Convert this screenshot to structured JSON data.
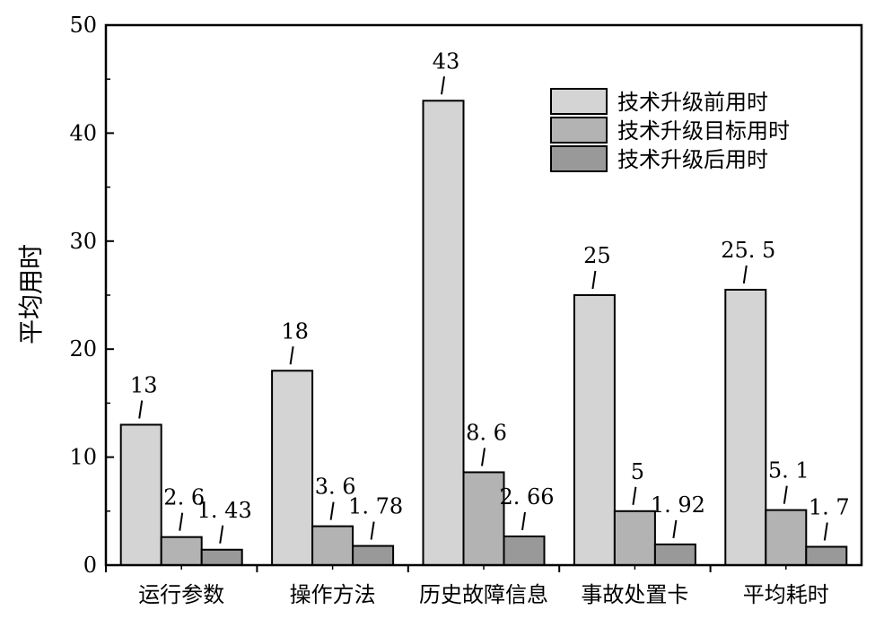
{
  "chart_data": {
    "type": "bar",
    "ylabel": "平均用时",
    "xlabel": "",
    "ylim": [
      0,
      50
    ],
    "yticks": [
      0,
      10,
      20,
      30,
      40,
      50
    ],
    "categories": [
      "运行参数",
      "操作方法",
      "历史故障信息",
      "事故处置卡",
      "平均耗时"
    ],
    "series": [
      {
        "name": "技术升级前用时",
        "color": "#d4d4d4",
        "values": [
          13,
          18,
          43,
          25,
          25.5
        ],
        "labels": [
          "13",
          "18",
          "43",
          "25",
          "25. 5"
        ]
      },
      {
        "name": "技术升级目标用时",
        "color": "#b3b3b3",
        "values": [
          2.6,
          3.6,
          8.6,
          5,
          5.1
        ],
        "labels": [
          "2. 6",
          "3. 6",
          "8. 6",
          "5",
          "5. 1"
        ]
      },
      {
        "name": "技术升级后用时",
        "color": "#999999",
        "values": [
          1.43,
          1.78,
          2.66,
          1.92,
          1.7
        ],
        "labels": [
          "1. 43",
          "1. 78",
          "2. 66",
          "1. 92",
          "1. 7"
        ]
      }
    ],
    "legend_position": "top-right",
    "grid": false
  }
}
